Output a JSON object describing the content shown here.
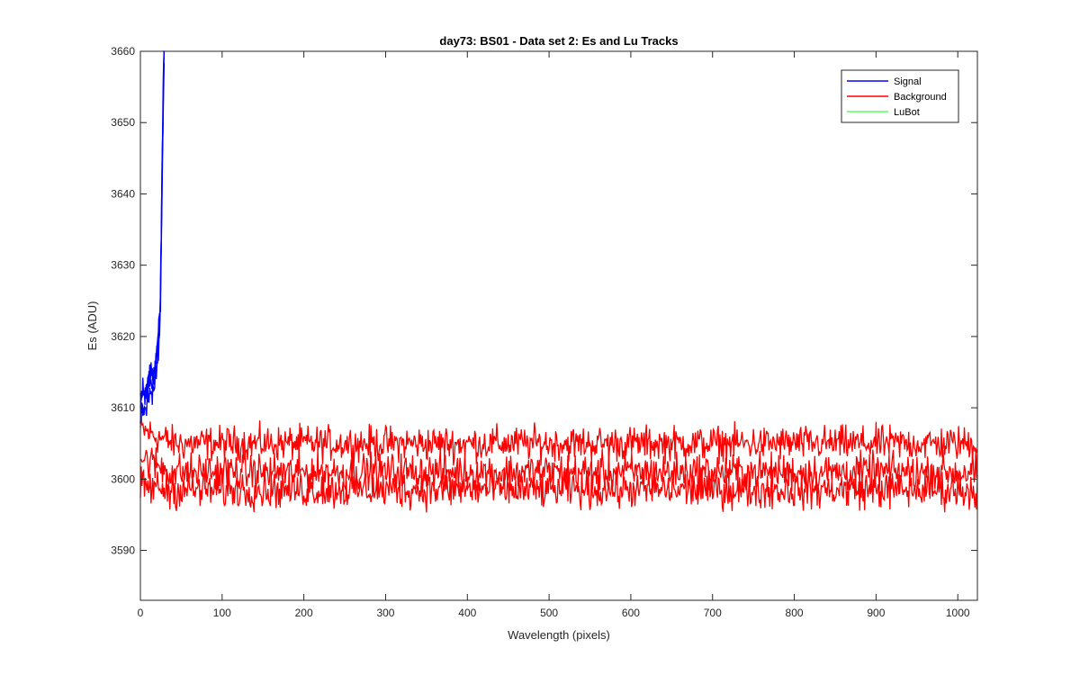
{
  "chart_data": {
    "type": "line",
    "title": "day73: BS01 - Data set 2: Es and Lu Tracks",
    "xlabel": "Wavelength (pixels)",
    "ylabel": "Es (ADU)",
    "xlim": [
      0,
      1024
    ],
    "ylim": [
      3583,
      3660
    ],
    "xticks": [
      0,
      100,
      200,
      300,
      400,
      500,
      600,
      700,
      800,
      900,
      1000
    ],
    "yticks": [
      3590,
      3600,
      3610,
      3620,
      3630,
      3640,
      3650,
      3660
    ],
    "xtick_labels": [
      "0",
      "100",
      "200",
      "300",
      "400",
      "500",
      "600",
      "700",
      "800",
      "900",
      "1000"
    ],
    "ytick_labels": [
      "3590",
      "3600",
      "3610",
      "3620",
      "3630",
      "3640",
      "3650",
      "3660"
    ],
    "grid": false,
    "legend_position": "top-right",
    "series": [
      {
        "name": "Signal",
        "color": "#0000ff",
        "x": [
          0,
          3,
          6,
          9,
          12,
          15,
          18,
          20,
          22,
          24,
          25,
          26,
          27,
          28,
          29
        ],
        "values": [
          3610,
          3612,
          3611,
          3613,
          3614,
          3613,
          3615,
          3617,
          3619,
          3623,
          3630,
          3638,
          3646,
          3654,
          3660
        ]
      },
      {
        "name": "Background",
        "color": "#ff0000",
        "x": [
          0,
          50,
          100,
          150,
          200,
          250,
          300,
          350,
          400,
          450,
          500,
          550,
          600,
          650,
          700,
          750,
          800,
          850,
          900,
          950,
          1024
        ],
        "values": [
          3606.5,
          3605.5,
          3605,
          3605,
          3605,
          3605,
          3605,
          3605.2,
          3605,
          3605,
          3605,
          3605.3,
          3605,
          3605.5,
          3605,
          3605,
          3605,
          3605,
          3605,
          3604.5,
          3604
        ]
      },
      {
        "name": "LuBot",
        "color": "#00ff00",
        "x": [],
        "values": []
      }
    ],
    "background_tracks": {
      "color": "#ff0000",
      "level_1": 3605,
      "level_2": 3601,
      "level_3": 3598.5
    }
  }
}
